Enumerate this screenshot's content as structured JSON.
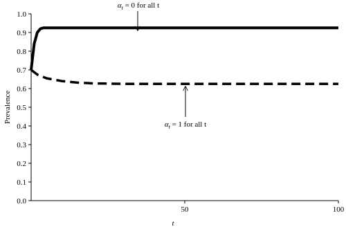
{
  "chart_data": {
    "type": "line",
    "xlabel": "t",
    "ylabel": "Prevalence",
    "xlim": [
      0,
      100
    ],
    "xticks": [
      50,
      100
    ],
    "ylim": [
      0,
      1.0
    ],
    "yticks": [
      {
        "value": 0,
        "label": "0.0"
      },
      {
        "value": 0.1,
        "label": "0.1"
      },
      {
        "value": 0.2,
        "label": "0.2"
      },
      {
        "value": 0.3,
        "label": "0.3"
      },
      {
        "value": 0.4,
        "label": "0.4"
      },
      {
        "value": 0.5,
        "label": "0.5"
      },
      {
        "value": 0.6,
        "label": "0.6"
      },
      {
        "value": 0.7,
        "label": "0.7"
      },
      {
        "value": 0.8,
        "label": "0.8"
      },
      {
        "value": 0.9,
        "label": "0.9"
      },
      {
        "value": 1.0,
        "label": "1.0"
      }
    ],
    "series": [
      {
        "color": "#000000",
        "dash": false,
        "x": [
          0,
          1,
          2,
          3,
          4,
          100
        ],
        "values": [
          0.7,
          0.84,
          0.9,
          0.92,
          0.925,
          0.925
        ]
      },
      {
        "color": "#000000",
        "dash": true,
        "x": [
          0,
          2,
          5,
          10,
          15,
          20,
          30,
          100
        ],
        "values": [
          0.7,
          0.675,
          0.655,
          0.64,
          0.632,
          0.628,
          0.625,
          0.625
        ]
      }
    ],
    "annotations": [
      {
        "symbol": "α",
        "sub": "t",
        "text": " = 0 for all t"
      },
      {
        "symbol": "α",
        "sub": "t",
        "text": " = 1 for all t"
      }
    ]
  }
}
